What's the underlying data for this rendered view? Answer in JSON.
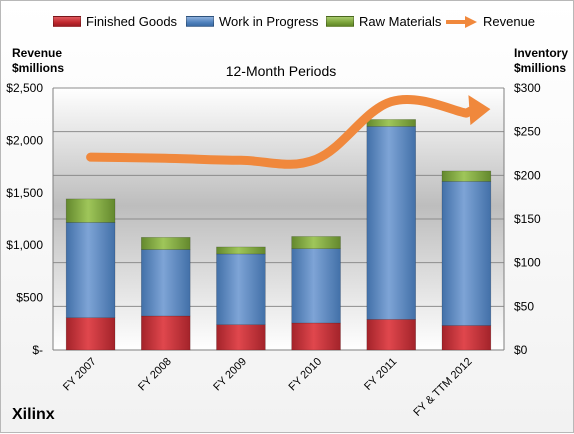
{
  "chart_data": {
    "type": "bar",
    "stacked": true,
    "subtitle": "12-Month Periods",
    "categories": [
      "FY 2007",
      "FY 2008",
      "FY 2009",
      "FY 2010",
      "FY 2011",
      "FY & TTM 2012"
    ],
    "series": [
      {
        "name": "Finished Goods",
        "axis": "right",
        "color": "#c0282e",
        "values": [
          37,
          39,
          29,
          31,
          35,
          28
        ]
      },
      {
        "name": "Work in Progress",
        "axis": "right",
        "color": "#4f81bd",
        "values": [
          109,
          76,
          81,
          85,
          221,
          165
        ]
      },
      {
        "name": "Raw Materials",
        "axis": "right",
        "color": "#7ba33a",
        "values": [
          27,
          14,
          8,
          14,
          8,
          12
        ]
      },
      {
        "name": "Revenue",
        "axis": "left",
        "type": "line",
        "color": "#f0883c",
        "values": [
          1840,
          1830,
          1810,
          1820,
          2370,
          2260
        ]
      }
    ],
    "y_left": {
      "label": "Revenue $millions",
      "range": [
        0,
        2500
      ],
      "ticks": [
        "$-",
        "$500",
        "$1,000",
        "$1,500",
        "$2,000",
        "$2,500"
      ]
    },
    "y_right": {
      "label": "Inventory $millions",
      "range": [
        0,
        300
      ],
      "ticks": [
        "$0",
        "$50",
        "$100",
        "$150",
        "$200",
        "$250",
        "$300"
      ]
    },
    "legend_position": "top",
    "grid": true
  },
  "labels": {
    "left_axis_line1": "Revenue",
    "left_axis_line2": "$millions",
    "right_axis_line1": "Inventory",
    "right_axis_line2": "$millions",
    "brand": "Xilinx"
  }
}
